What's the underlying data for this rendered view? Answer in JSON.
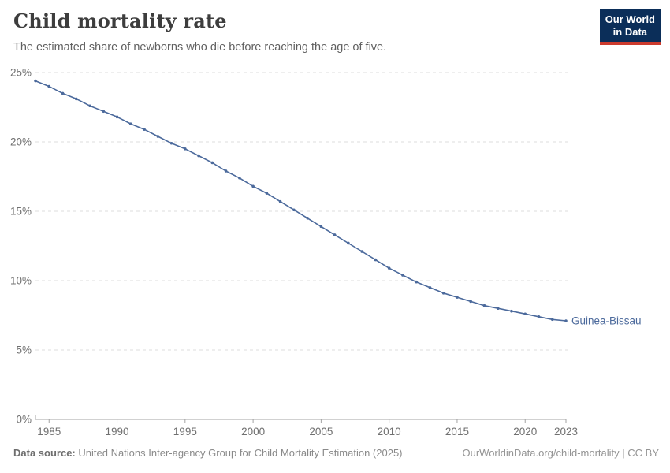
{
  "header": {
    "title": "Child mortality rate",
    "subtitle": "The estimated share of newborns who die before reaching the age of five.",
    "logo": {
      "line1": "Our World",
      "line2": "in Data"
    }
  },
  "chart_data": {
    "type": "line",
    "title": "Child mortality rate",
    "subtitle": "The estimated share of newborns who die before reaching the age of five.",
    "xlabel": "",
    "ylabel": "",
    "xlim": [
      1984,
      2023
    ],
    "ylim": [
      0,
      25
    ],
    "grid": "horizontal-dashed",
    "legend_position": "end-of-line-label",
    "x_ticks": [
      1985,
      1990,
      1995,
      2000,
      2005,
      2010,
      2015,
      2020,
      2023
    ],
    "y_ticks": [
      {
        "value": 0,
        "label": "0%"
      },
      {
        "value": 5,
        "label": "5%"
      },
      {
        "value": 10,
        "label": "10%"
      },
      {
        "value": 15,
        "label": "15%"
      },
      {
        "value": 20,
        "label": "20%"
      },
      {
        "value": 25,
        "label": "25%"
      }
    ],
    "series": [
      {
        "name": "Guinea-Bissau",
        "color": "#4c6a9c",
        "x": [
          1984,
          1985,
          1986,
          1987,
          1988,
          1989,
          1990,
          1991,
          1992,
          1993,
          1994,
          1995,
          1996,
          1997,
          1998,
          1999,
          2000,
          2001,
          2002,
          2003,
          2004,
          2005,
          2006,
          2007,
          2008,
          2009,
          2010,
          2011,
          2012,
          2013,
          2014,
          2015,
          2016,
          2017,
          2018,
          2019,
          2020,
          2021,
          2022,
          2023
        ],
        "values": [
          24.4,
          24.0,
          23.5,
          23.1,
          22.6,
          22.2,
          21.8,
          21.3,
          20.9,
          20.4,
          19.9,
          19.5,
          19.0,
          18.5,
          17.9,
          17.4,
          16.8,
          16.3,
          15.7,
          15.1,
          14.5,
          13.9,
          13.3,
          12.7,
          12.1,
          11.5,
          10.9,
          10.4,
          9.9,
          9.5,
          9.1,
          8.8,
          8.5,
          8.2,
          8.0,
          7.8,
          7.6,
          7.4,
          7.2,
          7.1
        ]
      }
    ]
  },
  "footer": {
    "datasource_label": "Data source:",
    "datasource_text": "United Nations Inter-agency Group for Child Mortality Estimation (2025)",
    "link": "OurWorldinData.org/child-mortality | CC BY"
  },
  "colors": {
    "line": "#4c6a9c",
    "gridline": "#dddddd",
    "axis": "#a3a3a3",
    "tick_label": "#707070",
    "logo_bg": "#0b2e59",
    "logo_red": "#cc3b2e"
  }
}
